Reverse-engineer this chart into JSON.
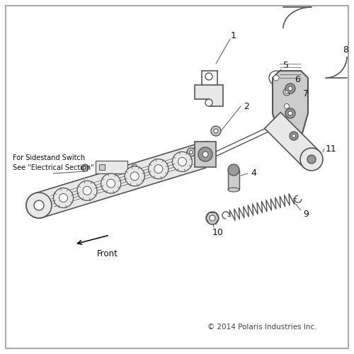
{
  "background_color": "#ffffff",
  "copyright_text": "© 2014 Polaris Industries Inc.",
  "note_text": "For Sidestand Switch\nSee \"Electrical Section\"",
  "front_label": "Front",
  "line_color": "#555555",
  "dark_color": "#111111",
  "mid_gray": "#999999",
  "light_gray": "#cccccc",
  "very_light_gray": "#e8e8e8"
}
